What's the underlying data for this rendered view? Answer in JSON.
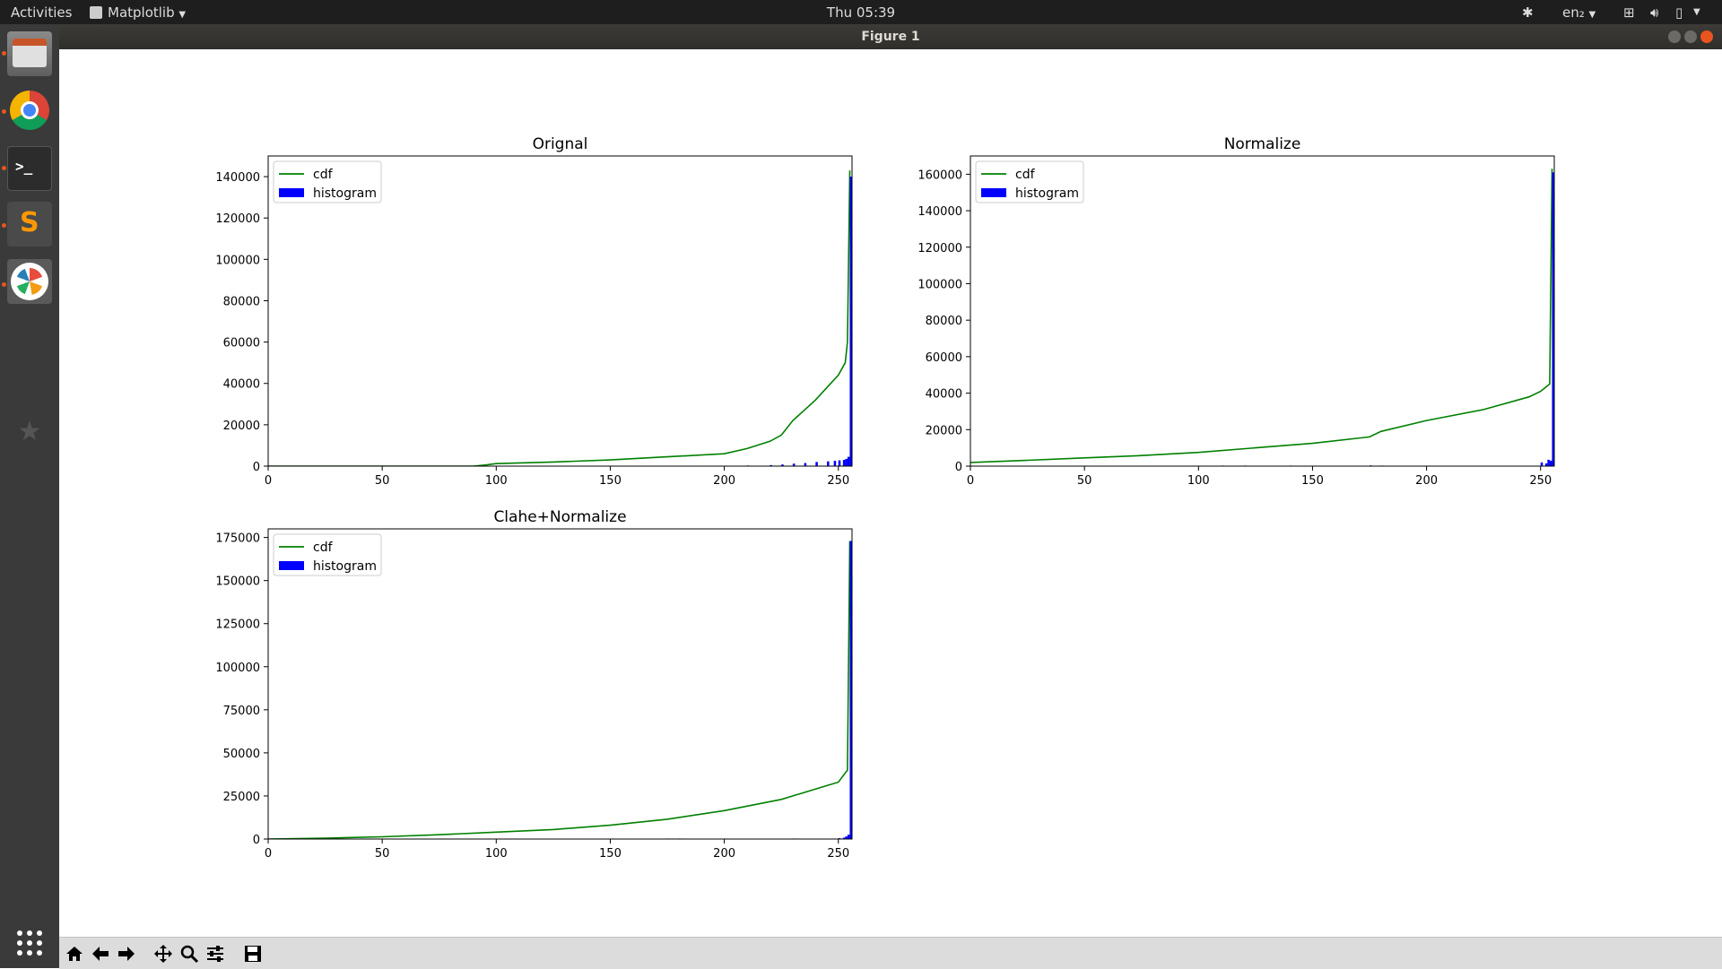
{
  "topbar": {
    "activities": "Activities",
    "app_menu": "Matplotlib",
    "clock": "Thu 05:39",
    "lang": "en₂"
  },
  "window": {
    "title": "Figure 1"
  },
  "dock": {
    "items": [
      {
        "name": "file-manager-icon",
        "running": true
      },
      {
        "name": "chrome-icon",
        "running": true
      },
      {
        "name": "terminal-icon",
        "running": true
      },
      {
        "name": "sublime-text-icon",
        "running": true
      },
      {
        "name": "matplotlib-icon",
        "running": true,
        "active": true
      },
      {
        "name": "favorites-star-icon",
        "running": false
      }
    ],
    "show_apps_icon": "grid-icon"
  },
  "toolbar": {
    "buttons": [
      "home-icon",
      "back-icon",
      "forward-icon",
      "pan-icon",
      "zoom-icon",
      "configure-subplots-icon",
      "save-icon"
    ]
  },
  "colors": {
    "cdf": "#008000",
    "histogram": "#0000ff"
  },
  "chart_data": [
    {
      "type": "line",
      "title": "Orignal",
      "xlim": [
        0,
        256
      ],
      "ylim": [
        0,
        150000
      ],
      "xticks": [
        0,
        50,
        100,
        150,
        200,
        250
      ],
      "yticks": [
        0,
        20000,
        40000,
        60000,
        80000,
        100000,
        120000,
        140000
      ],
      "legend": {
        "placement": "upper-left",
        "entries": [
          "cdf",
          "histogram"
        ]
      },
      "series": [
        {
          "name": "cdf",
          "kind": "line",
          "x": [
            0,
            90,
            95,
            100,
            125,
            150,
            175,
            200,
            210,
            220,
            225,
            230,
            240,
            245,
            250,
            253,
            254,
            255
          ],
          "y": [
            0,
            0,
            500,
            1200,
            2000,
            3000,
            4500,
            6000,
            8500,
            12000,
            15000,
            22000,
            32000,
            38000,
            44000,
            50000,
            60000,
            143000
          ]
        },
        {
          "name": "histogram",
          "kind": "bar",
          "x": [
            190,
            200,
            210,
            220,
            225,
            230,
            235,
            240,
            245,
            248,
            250,
            252,
            253,
            254,
            255
          ],
          "y": [
            150,
            200,
            300,
            500,
            800,
            1200,
            1500,
            2000,
            2300,
            2600,
            2800,
            3000,
            3500,
            4500,
            140000
          ]
        }
      ]
    },
    {
      "type": "line",
      "title": "Normalize",
      "xlim": [
        0,
        256
      ],
      "ylim": [
        0,
        170000
      ],
      "xticks": [
        0,
        50,
        100,
        150,
        200,
        250
      ],
      "yticks": [
        0,
        20000,
        40000,
        60000,
        80000,
        100000,
        120000,
        140000,
        160000
      ],
      "legend": {
        "placement": "upper-left",
        "entries": [
          "cdf",
          "histogram"
        ]
      },
      "series": [
        {
          "name": "cdf",
          "kind": "line",
          "x": [
            0,
            25,
            50,
            75,
            100,
            125,
            150,
            175,
            180,
            200,
            225,
            245,
            250,
            252,
            254,
            255
          ],
          "y": [
            2000,
            3200,
            4500,
            5800,
            7500,
            10000,
            12500,
            16000,
            19000,
            25000,
            31000,
            38000,
            41000,
            43000,
            45000,
            163000
          ]
        },
        {
          "name": "histogram",
          "kind": "bar",
          "x": [
            110,
            120,
            140,
            175,
            180,
            250,
            252,
            253,
            254,
            255
          ],
          "y": [
            300,
            300,
            300,
            400,
            300,
            2000,
            1500,
            3500,
            3000,
            161000
          ]
        }
      ]
    },
    {
      "type": "line",
      "title": "Clahe+Normalize",
      "xlim": [
        0,
        256
      ],
      "ylim": [
        0,
        180000
      ],
      "xticks": [
        0,
        50,
        100,
        150,
        200,
        250
      ],
      "yticks": [
        0,
        25000,
        50000,
        75000,
        100000,
        125000,
        150000,
        175000
      ],
      "legend": {
        "placement": "upper-left",
        "entries": [
          "cdf",
          "histogram"
        ]
      },
      "series": [
        {
          "name": "cdf",
          "kind": "line",
          "x": [
            0,
            25,
            50,
            75,
            100,
            125,
            150,
            175,
            200,
            225,
            245,
            250,
            254,
            255
          ],
          "y": [
            0,
            500,
            1300,
            2500,
            4000,
            5500,
            8000,
            11500,
            16500,
            23000,
            31000,
            33000,
            40000,
            173000
          ]
        },
        {
          "name": "histogram",
          "kind": "bar",
          "x": [
            175,
            180,
            230,
            250,
            252,
            253,
            254,
            255
          ],
          "y": [
            300,
            300,
            300,
            500,
            800,
            1500,
            2500,
            173000
          ]
        }
      ]
    }
  ]
}
